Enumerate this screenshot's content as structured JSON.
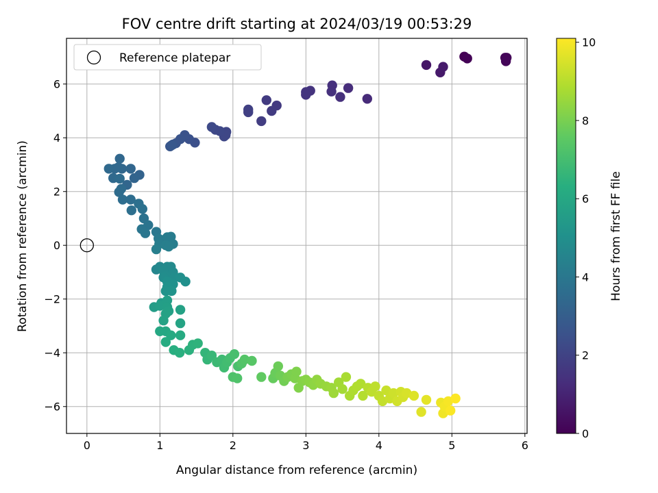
{
  "chart_data": {
    "type": "scatter",
    "title": "FOV centre drift starting at 2024/03/19 00:53:29",
    "xlabel": "Angular distance from reference (arcmin)",
    "ylabel": "Rotation from reference (arcmin)",
    "xlim": [
      -0.28,
      6.03
    ],
    "ylim": [
      -7.0,
      7.7
    ],
    "xticks": [
      0,
      1,
      2,
      3,
      4,
      5,
      6
    ],
    "yticks": [
      -6,
      -4,
      -2,
      0,
      2,
      4,
      6
    ],
    "grid": true,
    "legend": {
      "placement": "top-left",
      "entries": [
        "Reference platepar"
      ]
    },
    "reference_point": {
      "x": 0,
      "y": 0
    },
    "colorbar": {
      "label": "Hours from first FF file",
      "min": 0,
      "max": 10.1,
      "ticks": [
        0,
        2,
        4,
        6,
        8,
        10
      ],
      "colormap": "viridis"
    },
    "points": [
      [
        5.17,
        7.02,
        0.0
      ],
      [
        5.21,
        6.95,
        0.05
      ],
      [
        5.73,
        6.98,
        0.1
      ],
      [
        5.75,
        6.98,
        0.12
      ],
      [
        5.74,
        6.85,
        0.15
      ],
      [
        4.65,
        6.71,
        0.6
      ],
      [
        4.84,
        6.43,
        0.7
      ],
      [
        4.88,
        6.64,
        0.75
      ],
      [
        3.84,
        5.45,
        1.2
      ],
      [
        3.58,
        5.85,
        1.3
      ],
      [
        3.47,
        5.52,
        1.35
      ],
      [
        3.36,
        5.95,
        1.4
      ],
      [
        3.35,
        5.72,
        1.4
      ],
      [
        3.06,
        5.75,
        1.5
      ],
      [
        3.0,
        5.7,
        1.55
      ],
      [
        3.0,
        5.6,
        1.55
      ],
      [
        2.6,
        5.2,
        1.7
      ],
      [
        2.53,
        5.0,
        1.75
      ],
      [
        2.46,
        5.4,
        1.75
      ],
      [
        2.39,
        4.62,
        1.8
      ],
      [
        2.21,
        5.05,
        1.9
      ],
      [
        2.21,
        4.95,
        1.9
      ],
      [
        1.91,
        4.22,
        2.1
      ],
      [
        1.88,
        4.05,
        2.15
      ],
      [
        1.9,
        4.1,
        2.15
      ],
      [
        1.82,
        4.25,
        2.2
      ],
      [
        1.76,
        4.3,
        2.2
      ],
      [
        1.71,
        4.4,
        2.25
      ],
      [
        1.48,
        3.82,
        2.45
      ],
      [
        1.4,
        3.95,
        2.5
      ],
      [
        1.34,
        4.1,
        2.55
      ],
      [
        1.28,
        3.95,
        2.6
      ],
      [
        1.22,
        3.8,
        2.65
      ],
      [
        1.18,
        3.75,
        2.7
      ],
      [
        1.14,
        3.68,
        2.7
      ],
      [
        1.16,
        3.72,
        2.75
      ],
      [
        0.72,
        2.62,
        3.2
      ],
      [
        0.65,
        2.5,
        3.25
      ],
      [
        0.6,
        2.85,
        3.3
      ],
      [
        0.55,
        2.25,
        3.3
      ],
      [
        0.48,
        2.85,
        3.35
      ],
      [
        0.45,
        3.22,
        3.35
      ],
      [
        0.43,
        2.9,
        3.4
      ],
      [
        0.38,
        2.85,
        3.4
      ],
      [
        0.3,
        2.85,
        3.45
      ],
      [
        0.36,
        2.5,
        3.45
      ],
      [
        0.45,
        2.48,
        3.5
      ],
      [
        0.47,
        2.1,
        3.5
      ],
      [
        0.44,
        1.98,
        3.55
      ],
      [
        0.49,
        1.7,
        3.6
      ],
      [
        0.6,
        1.7,
        3.6
      ],
      [
        0.61,
        1.3,
        3.65
      ],
      [
        0.71,
        1.55,
        3.7
      ],
      [
        0.76,
        1.35,
        3.75
      ],
      [
        0.78,
        1.0,
        3.8
      ],
      [
        0.84,
        0.75,
        3.85
      ],
      [
        0.75,
        0.6,
        3.9
      ],
      [
        0.8,
        0.45,
        3.95
      ],
      [
        0.95,
        0.5,
        4.0
      ],
      [
        0.98,
        0.25,
        4.1
      ],
      [
        1.05,
        0.2,
        4.15
      ],
      [
        1.1,
        0.3,
        4.2
      ],
      [
        1.15,
        0.32,
        4.2
      ],
      [
        1.18,
        0.05,
        4.25
      ],
      [
        0.99,
        0.05,
        4.25
      ],
      [
        0.95,
        -0.15,
        4.3
      ],
      [
        1.08,
        0.0,
        4.3
      ],
      [
        1.12,
        -0.05,
        4.3
      ],
      [
        0.95,
        -0.9,
        4.6
      ],
      [
        1.0,
        -0.8,
        4.7
      ],
      [
        1.1,
        -0.8,
        4.75
      ],
      [
        1.15,
        -0.8,
        4.75
      ],
      [
        1.05,
        -0.95,
        4.8
      ],
      [
        1.18,
        -1.0,
        4.8
      ],
      [
        1.08,
        -1.15,
        4.85
      ],
      [
        1.2,
        -1.2,
        4.9
      ],
      [
        1.05,
        -1.2,
        4.9
      ],
      [
        1.28,
        -1.2,
        4.95
      ],
      [
        1.35,
        -1.35,
        5.0
      ],
      [
        1.1,
        -1.35,
        5.0
      ],
      [
        1.18,
        -1.45,
        5.05
      ],
      [
        1.1,
        -1.55,
        5.1
      ],
      [
        1.16,
        -1.7,
        5.15
      ],
      [
        1.08,
        -1.7,
        5.15
      ],
      [
        1.02,
        -2.15,
        5.5
      ],
      [
        0.92,
        -2.3,
        5.55
      ],
      [
        1.0,
        -2.25,
        5.6
      ],
      [
        1.1,
        -2.05,
        5.6
      ],
      [
        1.1,
        -2.3,
        5.65
      ],
      [
        1.12,
        -2.45,
        5.7
      ],
      [
        1.28,
        -2.4,
        5.75
      ],
      [
        1.08,
        -2.55,
        5.75
      ],
      [
        1.05,
        -2.8,
        5.8
      ],
      [
        1.28,
        -2.9,
        5.85
      ],
      [
        1.0,
        -3.2,
        6.0
      ],
      [
        1.08,
        -3.2,
        6.0
      ],
      [
        1.15,
        -3.35,
        6.1
      ],
      [
        1.28,
        -3.35,
        6.15
      ],
      [
        1.08,
        -3.6,
        6.2
      ],
      [
        1.19,
        -3.9,
        6.3
      ],
      [
        1.27,
        -4.0,
        6.35
      ],
      [
        1.4,
        -3.9,
        6.4
      ],
      [
        1.45,
        -3.7,
        6.45
      ],
      [
        1.52,
        -3.65,
        6.5
      ],
      [
        1.62,
        -4.0,
        6.6
      ],
      [
        1.65,
        -4.25,
        6.65
      ],
      [
        1.71,
        -4.1,
        6.7
      ],
      [
        1.78,
        -4.35,
        6.8
      ],
      [
        1.85,
        -4.25,
        6.85
      ],
      [
        1.88,
        -4.55,
        6.9
      ],
      [
        1.92,
        -4.35,
        6.95
      ],
      [
        1.96,
        -4.2,
        7.0
      ],
      [
        2.02,
        -4.05,
        7.05
      ],
      [
        2.07,
        -4.5,
        7.1
      ],
      [
        2.0,
        -4.9,
        7.2
      ],
      [
        2.06,
        -4.95,
        7.25
      ],
      [
        2.12,
        -4.4,
        7.3
      ],
      [
        2.16,
        -4.25,
        7.35
      ],
      [
        2.26,
        -4.3,
        7.4
      ],
      [
        2.39,
        -4.9,
        7.6
      ],
      [
        2.55,
        -4.95,
        7.7
      ],
      [
        2.58,
        -4.75,
        7.75
      ],
      [
        2.62,
        -4.5,
        7.8
      ],
      [
        2.65,
        -4.85,
        7.85
      ],
      [
        2.7,
        -5.05,
        7.9
      ],
      [
        2.75,
        -4.9,
        8.0
      ],
      [
        2.8,
        -4.8,
        8.05
      ],
      [
        2.85,
        -4.95,
        8.1
      ],
      [
        2.87,
        -4.7,
        8.1
      ],
      [
        2.9,
        -5.3,
        8.15
      ],
      [
        2.95,
        -5.05,
        8.2
      ],
      [
        3.0,
        -5.0,
        8.25
      ],
      [
        3.05,
        -5.1,
        8.3
      ],
      [
        3.1,
        -5.2,
        8.35
      ],
      [
        3.15,
        -5.0,
        8.4
      ],
      [
        3.2,
        -5.15,
        8.45
      ],
      [
        3.28,
        -5.25,
        8.5
      ],
      [
        3.35,
        -5.3,
        8.55
      ],
      [
        3.38,
        -5.5,
        8.6
      ],
      [
        3.45,
        -5.1,
        8.65
      ],
      [
        3.5,
        -5.35,
        8.7
      ],
      [
        3.55,
        -4.9,
        8.75
      ],
      [
        3.6,
        -5.6,
        8.8
      ],
      [
        3.65,
        -5.4,
        8.85
      ],
      [
        3.7,
        -5.25,
        8.9
      ],
      [
        3.75,
        -5.15,
        8.9
      ],
      [
        3.78,
        -5.6,
        8.95
      ],
      [
        3.85,
        -5.3,
        9.0
      ],
      [
        3.9,
        -5.45,
        9.1
      ],
      [
        3.95,
        -5.25,
        9.1
      ],
      [
        4.0,
        -5.6,
        9.15
      ],
      [
        4.05,
        -5.8,
        9.2
      ],
      [
        4.1,
        -5.4,
        9.25
      ],
      [
        4.15,
        -5.7,
        9.3
      ],
      [
        4.2,
        -5.5,
        9.35
      ],
      [
        4.25,
        -5.8,
        9.4
      ],
      [
        4.3,
        -5.45,
        9.4
      ],
      [
        4.33,
        -5.65,
        9.45
      ],
      [
        4.38,
        -5.5,
        9.5
      ],
      [
        4.48,
        -5.6,
        9.6
      ],
      [
        4.58,
        -6.2,
        9.65
      ],
      [
        4.65,
        -5.75,
        9.7
      ],
      [
        4.85,
        -5.85,
        9.85
      ],
      [
        4.88,
        -6.25,
        9.9
      ],
      [
        4.9,
        -6.0,
        9.95
      ],
      [
        4.95,
        -5.8,
        10.0
      ],
      [
        4.98,
        -6.15,
        10.05
      ],
      [
        5.05,
        -5.7,
        10.1
      ]
    ]
  }
}
